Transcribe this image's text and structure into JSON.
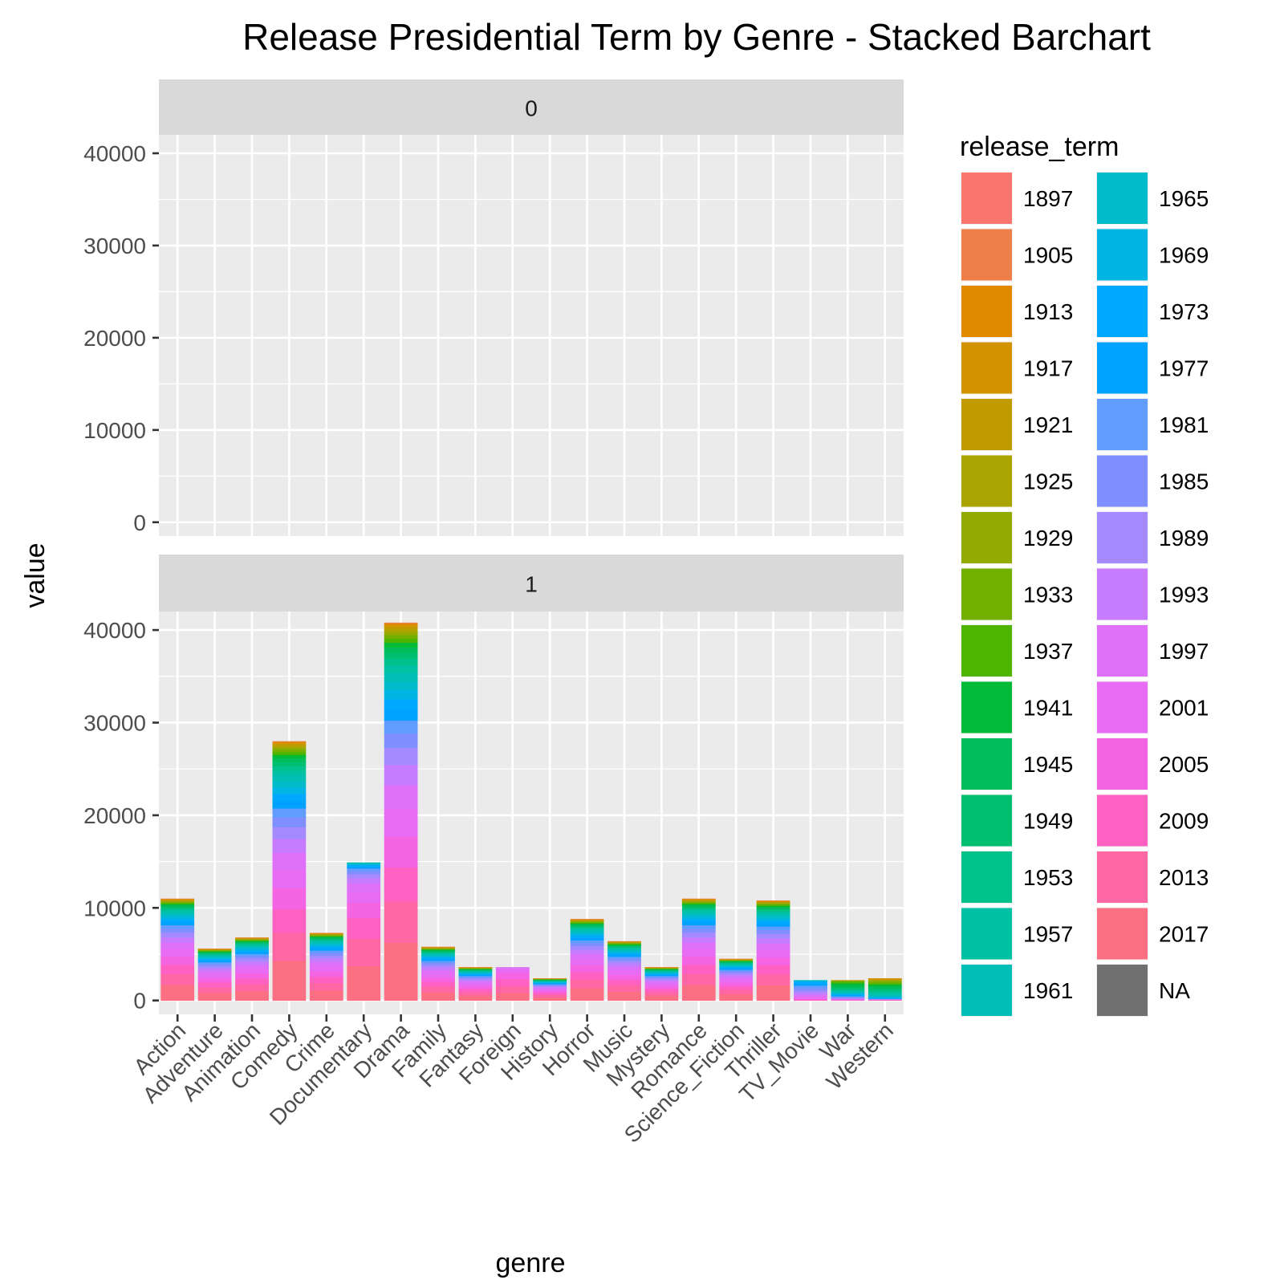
{
  "chart_data": {
    "type": "bar",
    "stacked": true,
    "title": "Release Presidential Term by Genre - Stacked Barchart",
    "xlabel": "genre",
    "ylabel": "value",
    "ylim": [
      -1500,
      42000
    ],
    "yticks": [
      0,
      10000,
      20000,
      30000,
      40000
    ],
    "y_tick_labels": [
      "0",
      "10000",
      "20000",
      "30000",
      "40000"
    ],
    "grid": true,
    "legend_position": "right",
    "legend_title": "release_term",
    "categories": [
      "Action",
      "Adventure",
      "Animation",
      "Comedy",
      "Crime",
      "Documentary",
      "Drama",
      "Family",
      "Fantasy",
      "Foreign",
      "History",
      "Horror",
      "Music",
      "Mystery",
      "Romance",
      "Science_Fiction",
      "Thriller",
      "TV_Movie",
      "War",
      "Western"
    ],
    "terms": [
      "1897",
      "1905",
      "1913",
      "1917",
      "1921",
      "1925",
      "1929",
      "1933",
      "1937",
      "1941",
      "1945",
      "1949",
      "1953",
      "1957",
      "1961",
      "1965",
      "1969",
      "1973",
      "1977",
      "1981",
      "1985",
      "1989",
      "1993",
      "1997",
      "2001",
      "2005",
      "2009",
      "2013",
      "2017",
      "NA"
    ],
    "colors": [
      "#F8766D",
      "#EF7F49",
      "#E18A00",
      "#D39200",
      "#C09B00",
      "#A9A400",
      "#93AA00",
      "#72B000",
      "#4FB400",
      "#00BA38",
      "#00BC59",
      "#00BE70",
      "#00C08B",
      "#00C1A3",
      "#00BFB7",
      "#00BBC9",
      "#00B4E4",
      "#00A9FF",
      "#00A2FF",
      "#619CFF",
      "#7F8FFF",
      "#A58AFF",
      "#C77CFF",
      "#DF70F8",
      "#E76BF3",
      "#F564E3",
      "#FF61C3",
      "#FF67A4",
      "#FD6F82",
      "#707070"
    ],
    "facets": [
      {
        "label": "0",
        "totals": [
          0,
          0,
          0,
          0,
          0,
          0,
          0,
          0,
          0,
          0,
          0,
          0,
          0,
          0,
          0,
          0,
          0,
          0,
          0,
          0
        ]
      },
      {
        "label": "1",
        "totals": [
          11000,
          5600,
          6800,
          28000,
          7300,
          14900,
          40800,
          5800,
          3600,
          3600,
          2400,
          8800,
          6400,
          3600,
          11000,
          4500,
          10800,
          2200,
          2200,
          2400
        ]
      }
    ],
    "weights": {
      "default": [
        0,
        0.002,
        0.004,
        0.006,
        0.008,
        0.008,
        0.008,
        0.01,
        0.012,
        0.014,
        0.015,
        0.018,
        0.02,
        0.022,
        0.025,
        0.025,
        0.027,
        0.03,
        0.032,
        0.038,
        0.042,
        0.05,
        0.06,
        0.07,
        0.08,
        0.09,
        0.1,
        0.12,
        0.17,
        0
      ],
      "Documentary": [
        0,
        0,
        0,
        0,
        0,
        0,
        0,
        0,
        0,
        0,
        0,
        0,
        0,
        0.002,
        0.004,
        0.006,
        0.008,
        0.01,
        0.012,
        0.018,
        0.022,
        0.03,
        0.04,
        0.06,
        0.08,
        0.11,
        0.15,
        0.2,
        0.25,
        0
      ],
      "Foreign": [
        0,
        0,
        0,
        0,
        0,
        0,
        0,
        0,
        0,
        0,
        0,
        0,
        0,
        0,
        0,
        0,
        0,
        0,
        0,
        0,
        0,
        0,
        0,
        0.05,
        0.12,
        0.18,
        0.22,
        0.2,
        0.23,
        0
      ],
      "TV_Movie": [
        0,
        0,
        0,
        0,
        0,
        0,
        0,
        0,
        0,
        0,
        0,
        0,
        0,
        0,
        0,
        0.03,
        0.05,
        0.08,
        0.1,
        0.12,
        0.12,
        0.12,
        0.1,
        0.1,
        0.08,
        0.05,
        0.03,
        0.02,
        0,
        0
      ],
      "War": [
        0,
        0,
        0,
        0,
        0.01,
        0.01,
        0.02,
        0.03,
        0.08,
        0.12,
        0.1,
        0.07,
        0.06,
        0.06,
        0.05,
        0.05,
        0.05,
        0.04,
        0.04,
        0.04,
        0.04,
        0.03,
        0.03,
        0.03,
        0.02,
        0.01,
        0.01,
        0.01,
        0,
        0
      ],
      "Western": [
        0,
        0,
        0.01,
        0.02,
        0.03,
        0.04,
        0.05,
        0.06,
        0.07,
        0.08,
        0.09,
        0.1,
        0.1,
        0.09,
        0.07,
        0.05,
        0.03,
        0.02,
        0.02,
        0.01,
        0.01,
        0.01,
        0.01,
        0.01,
        0.005,
        0.005,
        0.01,
        0.01,
        0.01,
        0
      ]
    }
  }
}
